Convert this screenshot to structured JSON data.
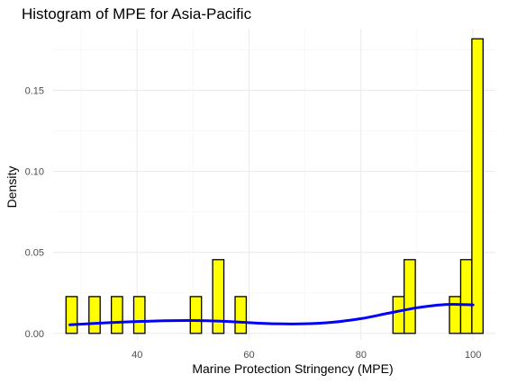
{
  "chart_data": {
    "type": "bar",
    "title": "Histogram of MPE for Asia-Pacific",
    "xlabel": "Marine Protection Stringency (MPE)",
    "ylabel": "Density",
    "xlim": [
      25,
      104
    ],
    "ylim": [
      -0.004,
      0.188
    ],
    "x_ticks": [
      40,
      60,
      80,
      100
    ],
    "x_tick_labels": [
      "40",
      "60",
      "80",
      "100"
    ],
    "y_ticks": [
      0,
      0.05,
      0.1,
      0.15
    ],
    "y_tick_labels": [
      "0.00",
      "0.05",
      "0.10",
      "0.15"
    ],
    "grid": true,
    "legend": "none",
    "bin_width": 2.0,
    "bar_fill": "#ffff00",
    "bar_outline": "#000000",
    "density_color": "#0000ff",
    "bins": [
      {
        "center": 28.3,
        "density": 0.0227
      },
      {
        "center": 32.4,
        "density": 0.0227
      },
      {
        "center": 36.4,
        "density": 0.0227
      },
      {
        "center": 40.4,
        "density": 0.0227
      },
      {
        "center": 50.5,
        "density": 0.0227
      },
      {
        "center": 54.5,
        "density": 0.0455
      },
      {
        "center": 58.5,
        "density": 0.0227
      },
      {
        "center": 86.7,
        "density": 0.0227
      },
      {
        "center": 88.7,
        "density": 0.0455
      },
      {
        "center": 96.8,
        "density": 0.0227
      },
      {
        "center": 98.8,
        "density": 0.0455
      },
      {
        "center": 100.8,
        "density": 0.1818
      }
    ],
    "density_curve": {
      "x": [
        28,
        35,
        40,
        45,
        50,
        55,
        60,
        65,
        70,
        75,
        80,
        85,
        90,
        95,
        100
      ],
      "y": [
        0.0053,
        0.0066,
        0.0073,
        0.0078,
        0.0079,
        0.0075,
        0.0066,
        0.0059,
        0.0059,
        0.0069,
        0.0091,
        0.0125,
        0.0158,
        0.0178,
        0.0176
      ]
    }
  }
}
